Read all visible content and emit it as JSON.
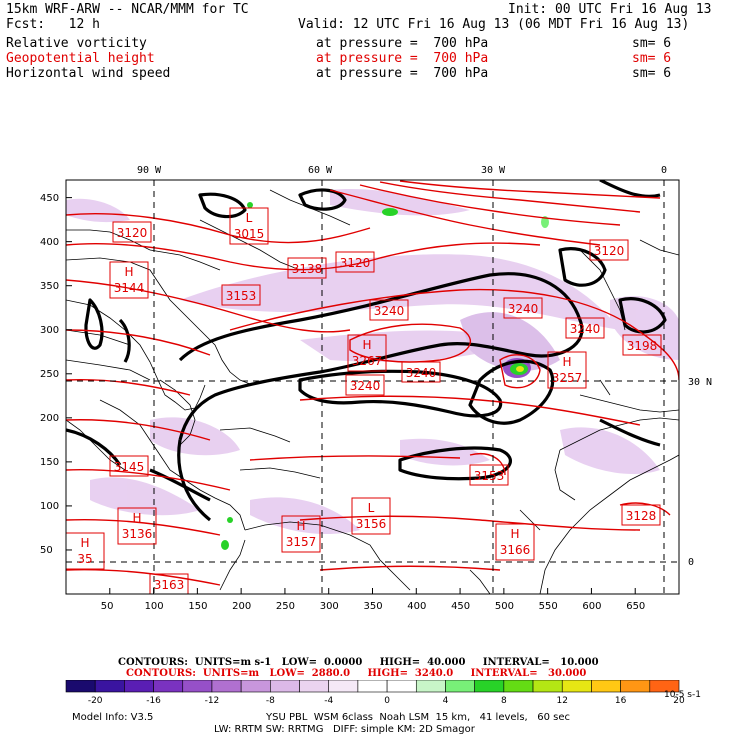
{
  "header": {
    "model_line": "15km WRF-ARW -- NCAR/MMM for TC",
    "init_line": "Init: 00 UTC Fri 16 Aug 13",
    "fcst_line": "Fcst:   12 h",
    "valid_line": "Valid: 12 UTC Fri 16 Aug 13 (06 MDT Fri 16 Aug 13)",
    "fields": [
      {
        "name": "Relative vorticity",
        "level": "at pressure =  700 hPa",
        "sm": "sm= 6",
        "color": "#000000"
      },
      {
        "name": "Geopotential height",
        "level": "at pressure =  700 hPa",
        "sm": "sm= 6",
        "color": "#e00000"
      },
      {
        "name": "Horizontal wind speed",
        "level": "at pressure =  700 hPa",
        "sm": "sm= 6",
        "color": "#000000"
      }
    ]
  },
  "map": {
    "top_lon_labels": [
      "90 W",
      "60 W",
      "30 W",
      "0"
    ],
    "right_lat_labels": [
      "30 N",
      "0"
    ],
    "x_ticks": [
      "50",
      "100",
      "150",
      "200",
      "250",
      "300",
      "350",
      "400",
      "450",
      "500",
      "550",
      "600",
      "650"
    ],
    "y_ticks": [
      "50",
      "100",
      "150",
      "200",
      "250",
      "300",
      "350",
      "400",
      "450"
    ],
    "height_labels": [
      {
        "text": "3120",
        "kind": "value"
      },
      {
        "text": "3144",
        "kind": "value",
        "prefix": "H"
      },
      {
        "text": "3015",
        "kind": "value",
        "prefix": "L"
      },
      {
        "text": "3138",
        "kind": "value"
      },
      {
        "text": "3120",
        "kind": "value"
      },
      {
        "text": "3153",
        "kind": "value"
      },
      {
        "text": "3240",
        "kind": "value"
      },
      {
        "text": "3267",
        "kind": "value",
        "prefix": "H"
      },
      {
        "text": "3240",
        "kind": "value"
      },
      {
        "text": "3240",
        "kind": "value"
      },
      {
        "text": "3240",
        "kind": "value"
      },
      {
        "text": "3240",
        "kind": "value"
      },
      {
        "text": "3120",
        "kind": "value"
      },
      {
        "text": "3198",
        "kind": "value"
      },
      {
        "text": "3257",
        "kind": "value",
        "prefix": "H"
      },
      {
        "text": "3153",
        "kind": "value"
      },
      {
        "text": "3145",
        "kind": "value"
      },
      {
        "text": "3136",
        "kind": "value",
        "prefix": "H"
      },
      {
        "text": "3157",
        "kind": "value",
        "prefix": "H"
      },
      {
        "text": "3156",
        "kind": "value",
        "prefix": "L"
      },
      {
        "text": "3166",
        "kind": "value",
        "prefix": "H"
      },
      {
        "text": "3128",
        "kind": "value"
      },
      {
        "text": "3163",
        "kind": "value"
      },
      {
        "text": "35",
        "kind": "value",
        "prefix": "H"
      }
    ]
  },
  "contours": {
    "black_line": "CONTOURS:  UNITS=m s-1   LOW=  0.0000     HIGH=  40.000     INTERVAL=   10.000",
    "red_line": "CONTOURS:  UNITS=m   LOW=  2880.0     HIGH=  3240.0     INTERVAL=   30.000"
  },
  "colorbar": {
    "labels": [
      "-20",
      "-16",
      "-12",
      "-8",
      "-4",
      "0",
      "4",
      "8",
      "12",
      "16",
      "20"
    ],
    "units": "10-5 s-1",
    "colors": [
      "#1a0a6e",
      "#3a14a0",
      "#5a1eb4",
      "#7a32c0",
      "#9650c8",
      "#b070d0",
      "#c896dc",
      "#dcb9e8",
      "#ebd4f0",
      "#f5e9f7",
      "#ffffff",
      "#ffffff",
      "#c8f5c8",
      "#78f078",
      "#28d228",
      "#64dc14",
      "#b4e614",
      "#e6e614",
      "#ffc814",
      "#ff9614",
      "#ff6414"
    ]
  },
  "footer": {
    "model_info": "Model Info: V3.5",
    "physics_1": "YSU PBL  WSM 6class  Noah LSM  15 km,   41 levels,   60 sec",
    "physics_2": "LW: RRTM SW: RRTMG   DIFF: simple KM: 2D Smagor"
  }
}
